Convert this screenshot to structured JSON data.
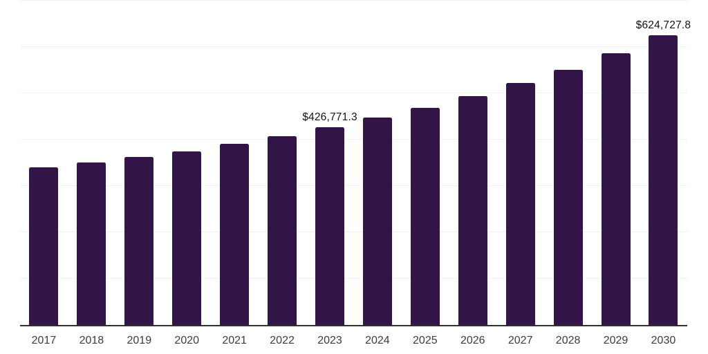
{
  "chart_data": {
    "type": "bar",
    "title": "",
    "xlabel": "",
    "ylabel": "",
    "categories": [
      "2017",
      "2018",
      "2019",
      "2020",
      "2021",
      "2022",
      "2023",
      "2024",
      "2025",
      "2026",
      "2027",
      "2028",
      "2029",
      "2030"
    ],
    "values": [
      340500,
      351000,
      362400,
      374000,
      390400,
      407800,
      426771.3,
      447800,
      469300,
      494000,
      522300,
      551200,
      586000,
      624727.8
    ],
    "value_labels": [
      {
        "category": "2023",
        "text": "$426,771.3"
      },
      {
        "category": "2030",
        "text": "$624,727.8"
      }
    ],
    "ylim": [
      0,
      700000
    ],
    "gridline_step": 100000,
    "grid": "horizontal",
    "legend": "none",
    "colors": {
      "bar": "#321447",
      "gridline": "#f1f1f4",
      "axis": "#2e2e2e",
      "tick_label": "#3c3c3c",
      "value_label": "#111111"
    }
  }
}
